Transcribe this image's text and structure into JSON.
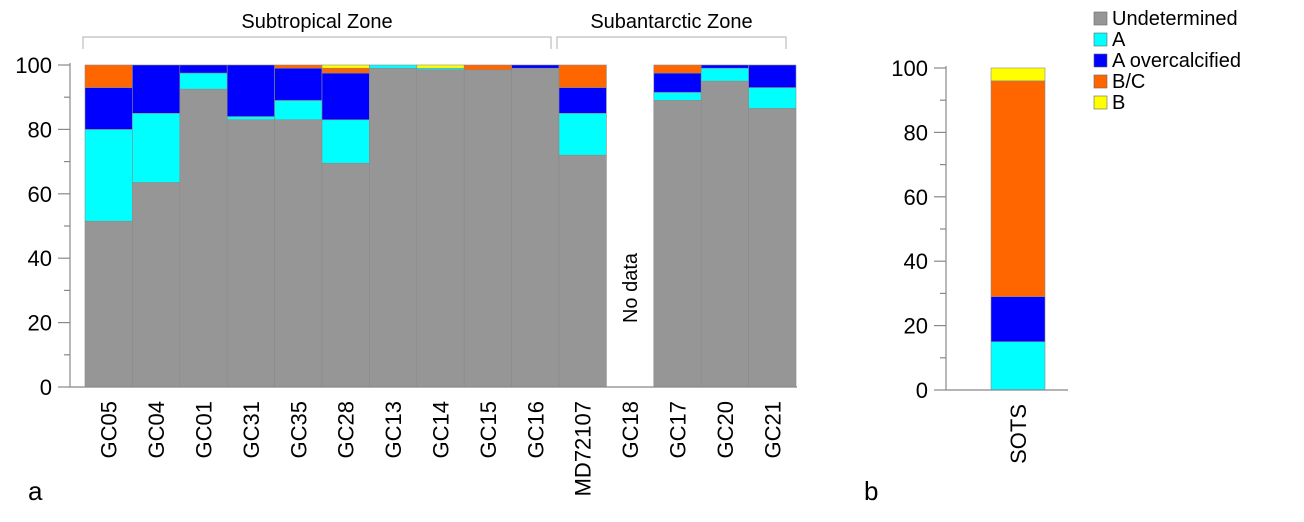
{
  "legend": [
    {
      "name": "Undetermined",
      "color": "#969696"
    },
    {
      "name": "A",
      "color": "#00ffff"
    },
    {
      "name": "A overcalcified",
      "color": "#0000ff"
    },
    {
      "name": "B/C",
      "color": "#ff6600"
    },
    {
      "name": "B",
      "color": "#ffff00"
    }
  ],
  "chart_data": [
    {
      "type": "bar",
      "stacked": true,
      "panel_label": "a",
      "categories": [
        "GC05",
        "GC04",
        "GC01",
        "GC31",
        "GC35",
        "GC28",
        "GC13",
        "GC14",
        "GC15",
        "GC16",
        "MD72107",
        "GC18",
        "GC17",
        "GC20",
        "GC21"
      ],
      "ylim": [
        0,
        100
      ],
      "yticks": [
        0,
        20,
        40,
        60,
        80,
        100
      ],
      "grid": false,
      "legend_position": "top-right",
      "annotations": [
        {
          "category": "GC18",
          "text": "No data"
        }
      ],
      "zones": [
        {
          "label": "Subtropical Zone",
          "from": "GC05",
          "to": "GC16"
        },
        {
          "label": "Subantarctic Zone",
          "from": "MD72107",
          "to": "GC21"
        }
      ],
      "series": [
        {
          "name": "Undetermined",
          "color": "#969696",
          "values": [
            51.5,
            63.5,
            92.5,
            83,
            83,
            69.5,
            99,
            98.5,
            98.5,
            99,
            72,
            null,
            89,
            95,
            86.5
          ]
        },
        {
          "name": "A",
          "color": "#00ffff",
          "values": [
            28.5,
            21.5,
            5,
            1,
            6,
            13.5,
            1,
            0.5,
            0,
            0,
            13,
            null,
            2.5,
            4,
            6.5
          ]
        },
        {
          "name": "A overcalcified",
          "color": "#0000ff",
          "values": [
            13,
            15,
            2.5,
            16,
            10,
            14.5,
            0,
            0,
            0,
            1,
            8,
            null,
            6,
            1,
            7
          ]
        },
        {
          "name": "B/C",
          "color": "#ff6600",
          "values": [
            7,
            0,
            0,
            0,
            1,
            1.5,
            0,
            0,
            1.5,
            0,
            7,
            null,
            2.5,
            0,
            0
          ]
        },
        {
          "name": "B",
          "color": "#ffff00",
          "values": [
            0,
            0,
            0,
            0,
            0,
            1,
            0,
            1,
            0,
            0,
            0,
            null,
            0,
            0,
            0
          ]
        }
      ]
    },
    {
      "type": "bar",
      "stacked": true,
      "panel_label": "b",
      "categories": [
        "SOTS"
      ],
      "ylim": [
        0,
        100
      ],
      "yticks": [
        0,
        20,
        40,
        60,
        80,
        100
      ],
      "grid": false,
      "series": [
        {
          "name": "Undetermined",
          "color": "#969696",
          "values": [
            0
          ]
        },
        {
          "name": "A",
          "color": "#00ffff",
          "values": [
            15
          ]
        },
        {
          "name": "A overcalcified",
          "color": "#0000ff",
          "values": [
            14
          ]
        },
        {
          "name": "B/C",
          "color": "#ff6600",
          "values": [
            67
          ]
        },
        {
          "name": "B",
          "color": "#ffff00",
          "values": [
            4
          ]
        }
      ]
    }
  ]
}
